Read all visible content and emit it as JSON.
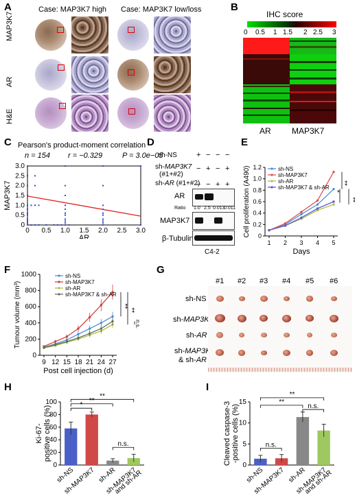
{
  "panel_labels": {
    "A": "A",
    "B": "B",
    "C": "C",
    "D": "D",
    "E": "E",
    "F": "F",
    "G": "G",
    "H": "H",
    "I": "I"
  },
  "panelA": {
    "case_high": "Case: MAP3K7 high",
    "case_low": "Case: MAP3K7 low/loss",
    "rows": [
      "MAP3K7",
      "AR",
      "H&E"
    ]
  },
  "panelB": {
    "title": "IHC score",
    "scale_ticks": [
      "0",
      "0.5",
      "1",
      "1.5",
      "2",
      "2.5",
      "3"
    ],
    "columns": [
      "AR",
      "MAP3K7"
    ],
    "colors": {
      "low": "#00e000",
      "mid": "#000000",
      "high": "#ff0000"
    }
  },
  "panelC": {
    "heading": "Pearson's product-moment correlation",
    "stats_n": "n = 154",
    "stats_r": "r = −0.329",
    "stats_p": "P = 3.0e−05",
    "chart_data": {
      "type": "scatter",
      "xlabel": "AR",
      "ylabel": "MAP3K7",
      "xlim": [
        0,
        3
      ],
      "ylim": [
        0,
        3
      ],
      "xticks": [
        "0",
        "0.5",
        "1.0",
        "1.5",
        "2.0",
        "2.5",
        "3.0"
      ],
      "yticks": [
        "0",
        "0.5",
        "1.0",
        "1.5",
        "2.0",
        "2.5",
        "3.0"
      ],
      "points": [
        [
          0,
          0
        ],
        [
          0.1,
          0
        ],
        [
          0.2,
          0
        ],
        [
          0.3,
          0
        ],
        [
          0.5,
          0
        ],
        [
          0.7,
          0
        ],
        [
          0.8,
          0
        ],
        [
          0.9,
          0
        ],
        [
          1,
          0
        ],
        [
          1.1,
          0
        ],
        [
          2,
          0
        ],
        [
          3,
          0
        ],
        [
          0,
          0.1
        ],
        [
          1,
          0.1
        ],
        [
          2,
          0.1
        ],
        [
          0,
          0.2
        ],
        [
          1,
          0.2
        ],
        [
          2,
          0.2
        ],
        [
          0,
          0.3
        ],
        [
          1,
          0.3
        ],
        [
          2,
          0.3
        ],
        [
          0,
          0.5
        ],
        [
          1,
          0.5
        ],
        [
          2,
          0.5
        ],
        [
          0,
          0.6
        ],
        [
          1,
          0.6
        ],
        [
          2,
          0.6
        ],
        [
          0,
          0.8
        ],
        [
          1,
          0.8
        ],
        [
          2,
          0.8
        ],
        [
          0,
          1.0
        ],
        [
          0.1,
          1.0
        ],
        [
          0.2,
          1.0
        ],
        [
          0.3,
          1.0
        ],
        [
          1,
          1.0
        ],
        [
          2,
          1.0
        ],
        [
          0,
          1.5
        ],
        [
          1,
          1.5
        ],
        [
          0,
          2.0
        ],
        [
          0.2,
          2.0
        ],
        [
          1,
          2.0
        ],
        [
          2,
          2.0
        ],
        [
          0,
          2.5
        ],
        [
          0.2,
          2.5
        ],
        [
          0,
          3.0
        ],
        [
          1,
          3.0
        ],
        [
          2,
          3.0
        ],
        [
          3,
          3.0
        ]
      ],
      "fit_line": {
        "x0": 0,
        "y0": 1.47,
        "x1": 3,
        "y1": 0.45
      },
      "point_color": "#3344cc",
      "line_color": "#e02020"
    }
  },
  "panelD": {
    "rows": [
      "sh-NS",
      "sh-MAP3K7 (#1+#2)",
      "sh-AR (#1+#2)"
    ],
    "row_label_1": "sh-NS",
    "row_label_2a": "sh-",
    "row_label_2b": "MAP3K7",
    "row_label_2c": "(#1+#2)",
    "row_label_3a": "sh-",
    "row_label_3b": "AR",
    "row_label_3c": " (#1+#2)",
    "signs": [
      [
        "+",
        "−",
        "−",
        "−"
      ],
      [
        "−",
        "+",
        "−",
        "+"
      ],
      [
        "−",
        "−",
        "+",
        "+"
      ]
    ],
    "blot_AR": "AR",
    "ratio_label": "Ratio",
    "ratios": [
      "1.0",
      "2.5",
      "0.013",
      "0.011"
    ],
    "blot_MAP3K7": "MAP3K7",
    "blot_tubulin": "β-Tubulin",
    "cell_line": "C4-2"
  },
  "panelE": {
    "chart_data": {
      "type": "line",
      "xlabel": "Days",
      "ylabel": "Cell proliferation (A490)",
      "x": [
        1,
        2,
        3,
        4,
        5
      ],
      "ylim": [
        0,
        1.2
      ],
      "yticks": [
        "0",
        "0.2",
        "0.4",
        "0.6",
        "0.8",
        "1.0",
        "1.2"
      ],
      "series": [
        {
          "name": "sh-NS",
          "color": "#4a8fd6",
          "values": [
            0.1,
            0.2,
            0.38,
            0.55,
            0.82
          ]
        },
        {
          "name": "sh-MAP3K7",
          "color": "#e05050",
          "values": [
            0.1,
            0.22,
            0.42,
            0.62,
            1.12
          ]
        },
        {
          "name": "sh-AR",
          "color": "#b0c040",
          "values": [
            0.1,
            0.18,
            0.3,
            0.45,
            0.55
          ]
        },
        {
          "name": "sh-MAP3K7 & sh-AR",
          "color": "#5a5ad0",
          "values": [
            0.1,
            0.18,
            0.32,
            0.48,
            0.6
          ]
        }
      ],
      "sig": [
        "**",
        "*",
        "**"
      ]
    }
  },
  "panelF": {
    "chart_data": {
      "type": "line",
      "xlabel": "Post cell injection (d)",
      "ylabel": "Tumour volume (mm³)",
      "x": [
        9,
        12,
        15,
        18,
        21,
        24,
        27
      ],
      "ylim": [
        0,
        1000
      ],
      "yticks": [
        "0",
        "200",
        "400",
        "600",
        "800",
        "1000"
      ],
      "series": [
        {
          "name": "sh-NS",
          "color": "#4a8fd6",
          "values": [
            100,
            140,
            190,
            260,
            330,
            400,
            480
          ]
        },
        {
          "name": "sh-MAP3K7",
          "color": "#d04040",
          "values": [
            110,
            170,
            230,
            330,
            470,
            620,
            780
          ]
        },
        {
          "name": "sh-AR",
          "color": "#b0c040",
          "values": [
            90,
            120,
            160,
            200,
            250,
            300,
            380
          ]
        },
        {
          "name": "sh-MAP3K7 & sh-AR",
          "color": "#607060",
          "values": [
            95,
            130,
            170,
            215,
            270,
            330,
            420
          ]
        }
      ],
      "sig": [
        "**",
        "**",
        "n.s."
      ]
    }
  },
  "panelG": {
    "numbers": [
      "#1",
      "#2",
      "#3",
      "#4",
      "#5",
      "#6"
    ],
    "row_a": "sh-NS",
    "row_b1": "sh-",
    "row_b2": "MAP3K7",
    "row_c1": "sh-",
    "row_c2": "AR",
    "row_d1": "sh-",
    "row_d2": "MAP3K7",
    "row_d3": "& sh-",
    "row_d4": "AR"
  },
  "panelH": {
    "chart_data": {
      "type": "bar",
      "ylabel": "Ki-67-\npositive cells (%)",
      "ylim": [
        0,
        100
      ],
      "yticks": [
        "0",
        "20",
        "40",
        "60",
        "80",
        "100"
      ],
      "categories": [
        "sh-NS",
        "sh-MAP3K7",
        "sh-AR",
        "sh-MAP3K7 and sh-AR"
      ],
      "values": [
        58,
        80,
        7,
        11
      ],
      "errors": [
        10,
        4,
        3,
        6
      ],
      "colors": [
        "#4a5fc8",
        "#d04848",
        "#888888",
        "#a0c860"
      ],
      "sig": [
        "*",
        "**",
        "**",
        "n.s."
      ]
    }
  },
  "panelI": {
    "chart_data": {
      "type": "bar",
      "ylabel": "Cleaved caspase-3\n-positive cells (%)",
      "ylim": [
        0,
        15
      ],
      "yticks": [
        "0",
        "5",
        "10",
        "15"
      ],
      "categories": [
        "sh-NS",
        "sh-MAP3K7",
        "sh-AR",
        "sh-MAP3K7 and sh-AR"
      ],
      "values": [
        1.5,
        1.6,
        11.4,
        8.2
      ],
      "errors": [
        0.8,
        0.9,
        1.2,
        1.5
      ],
      "colors": [
        "#4a5fc8",
        "#d04848",
        "#888888",
        "#a0c860"
      ],
      "sig": [
        "n.s.",
        "**",
        "**",
        "n.s."
      ]
    }
  }
}
